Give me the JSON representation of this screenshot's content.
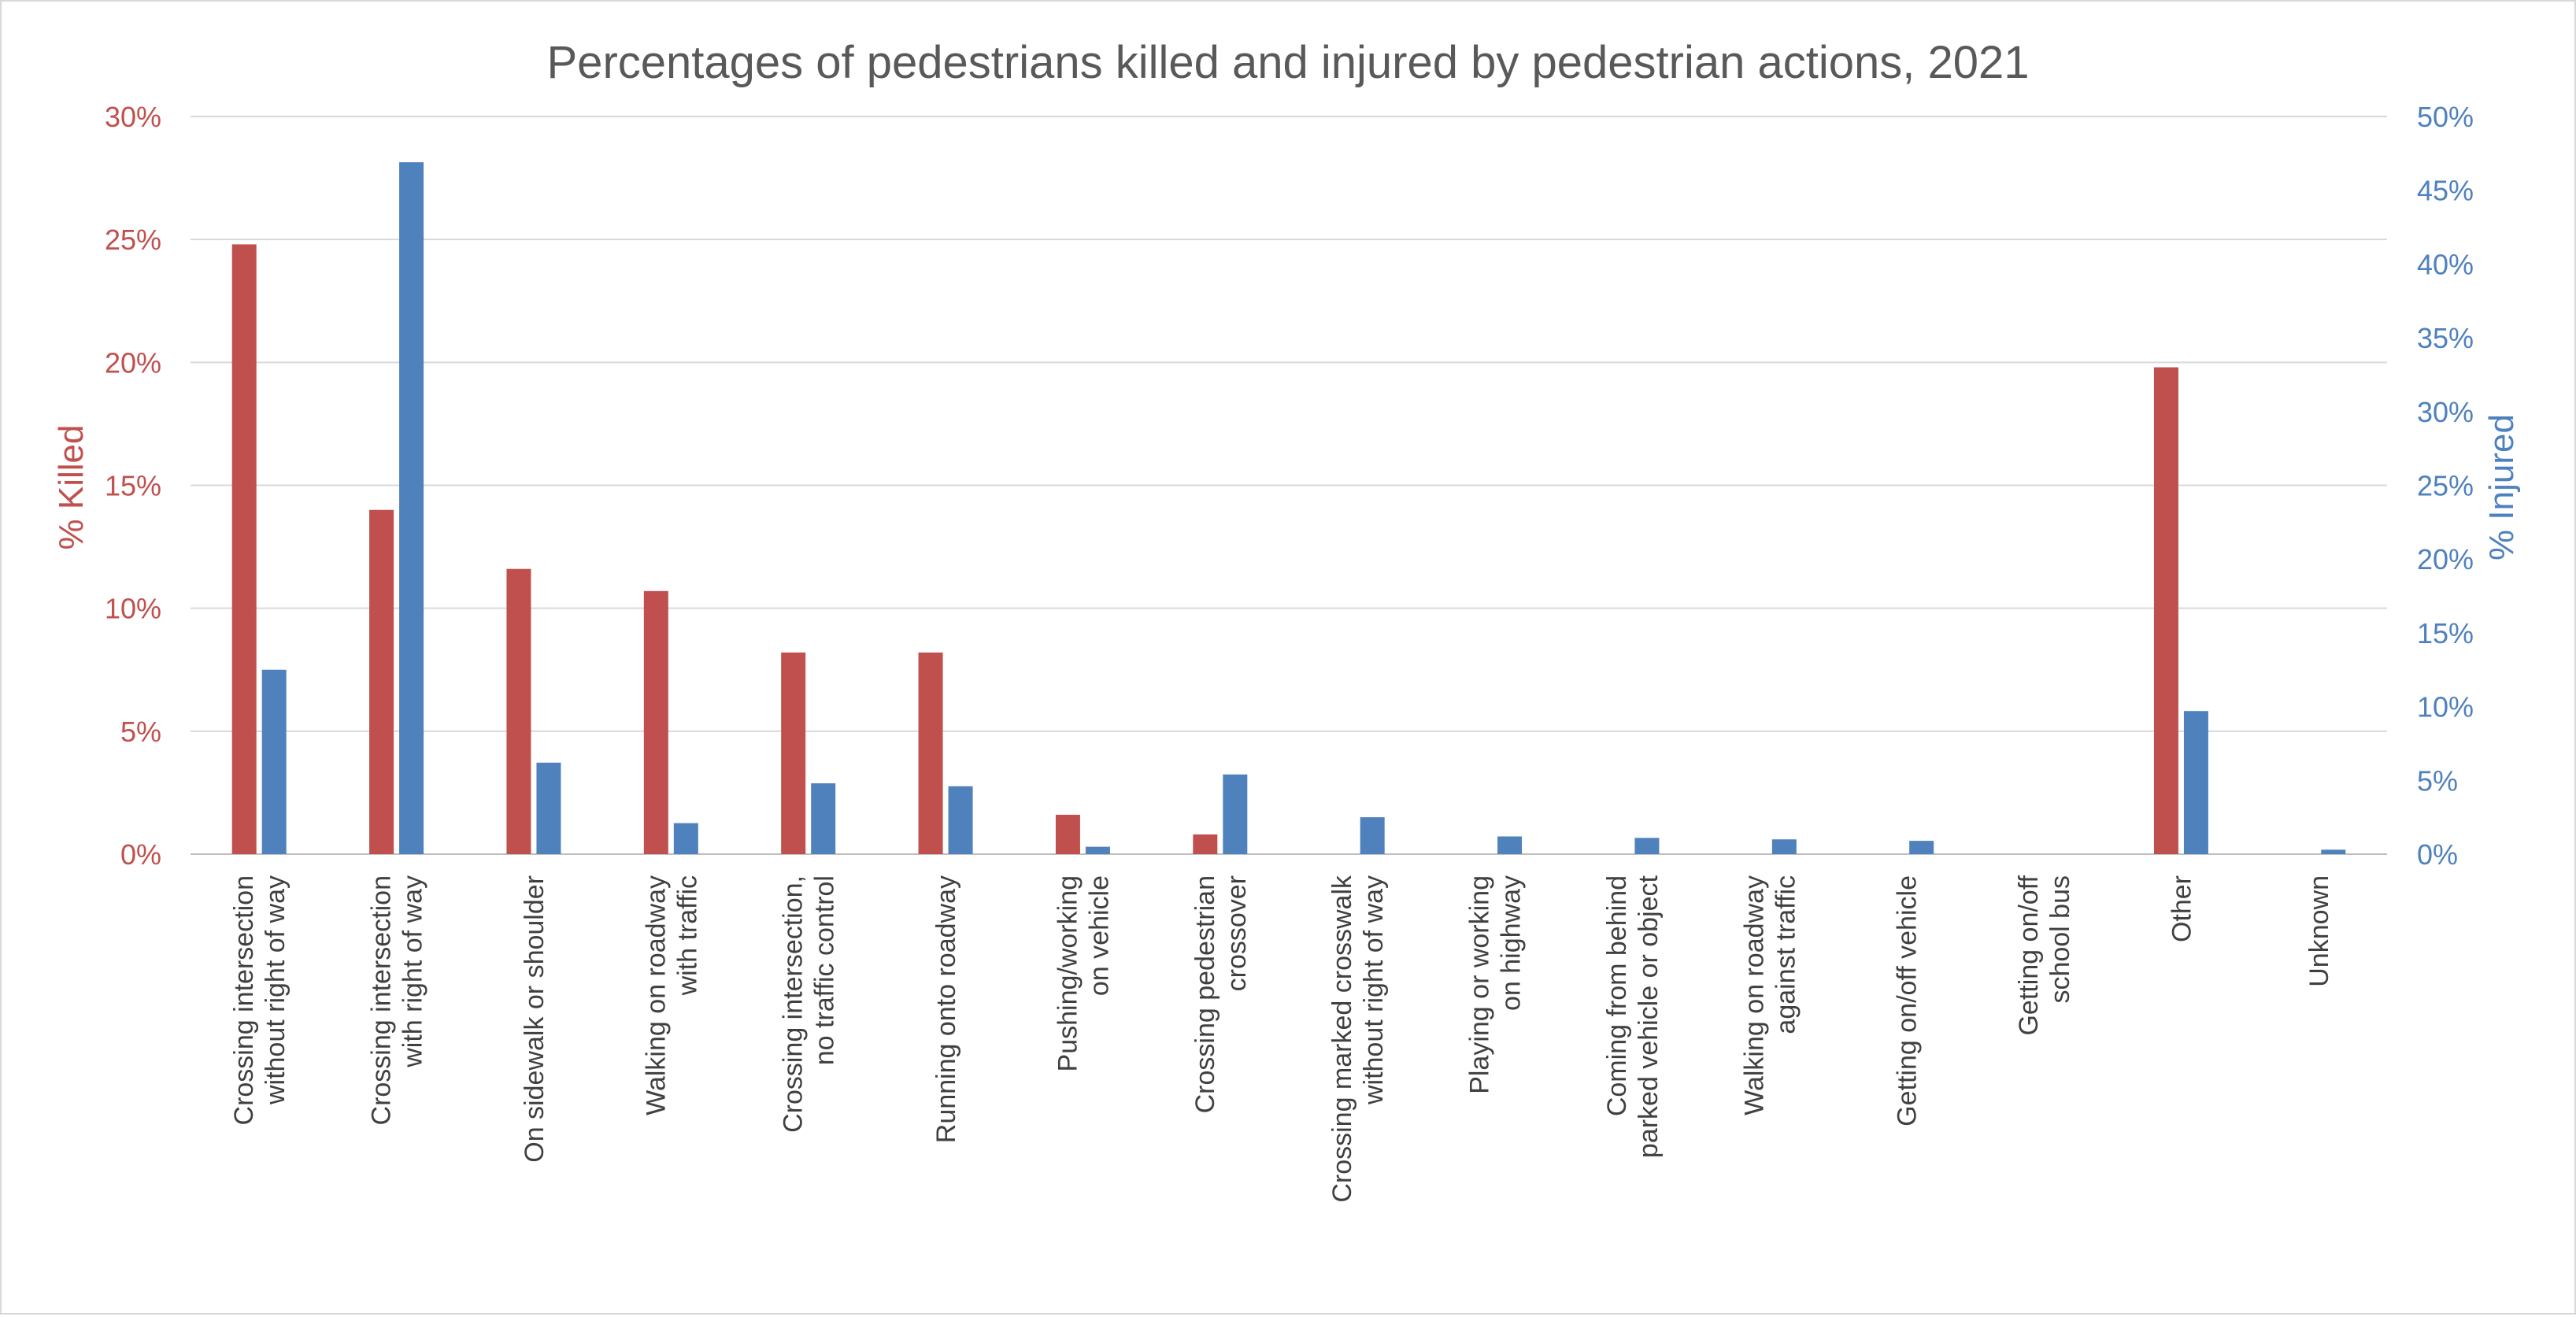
{
  "chart_data": {
    "type": "bar",
    "title": "Percentages of pedestrians killed and injured by pedestrian actions, 2021",
    "y_left": {
      "label": "% Killed",
      "color": "#c0504d",
      "range": [
        0,
        30
      ],
      "ticks": [
        "0%",
        "5%",
        "10%",
        "15%",
        "20%",
        "25%",
        "30%"
      ]
    },
    "y_right": {
      "label": "% Injured",
      "color": "#4f81bd",
      "range": [
        0,
        50
      ],
      "ticks": [
        "0%",
        "5%",
        "10%",
        "15%",
        "20%",
        "25%",
        "30%",
        "35%",
        "40%",
        "45%",
        "50%"
      ]
    },
    "grid": true,
    "categories": [
      [
        "Crossing intersection",
        "without right of way"
      ],
      [
        "Crossing intersection",
        "with right of way"
      ],
      [
        "On sidewalk or shoulder"
      ],
      [
        "Walking on roadway",
        "with traffic"
      ],
      [
        "Crossing intersection,",
        "no traffic control"
      ],
      [
        "Running onto roadway"
      ],
      [
        "Pushing/working",
        "on vehicle"
      ],
      [
        "Crossing pedestrian",
        "crossover"
      ],
      [
        "Crossing marked crosswalk",
        "without right of way"
      ],
      [
        "Playing or working",
        "on highway"
      ],
      [
        "Coming from behind",
        "parked vehicle or object"
      ],
      [
        "Walking on roadway",
        "against traffic"
      ],
      [
        "Getting on/off vehicle"
      ],
      [
        "Getting on/off",
        "school bus"
      ],
      [
        "Other"
      ],
      [
        "Unknown"
      ]
    ],
    "series": [
      {
        "axis": "left",
        "color": "#c0504d",
        "values": [
          24.8,
          14.0,
          11.6,
          10.7,
          8.2,
          8.2,
          1.6,
          0.8,
          0,
          0,
          0,
          0,
          0,
          0,
          19.8,
          0
        ]
      },
      {
        "axis": "right",
        "color": "#4f81bd",
        "values": [
          12.5,
          46.9,
          6.2,
          2.1,
          4.8,
          4.6,
          0.5,
          5.4,
          2.5,
          1.2,
          1.1,
          1.0,
          0.9,
          0,
          9.7,
          0.3
        ]
      }
    ]
  }
}
